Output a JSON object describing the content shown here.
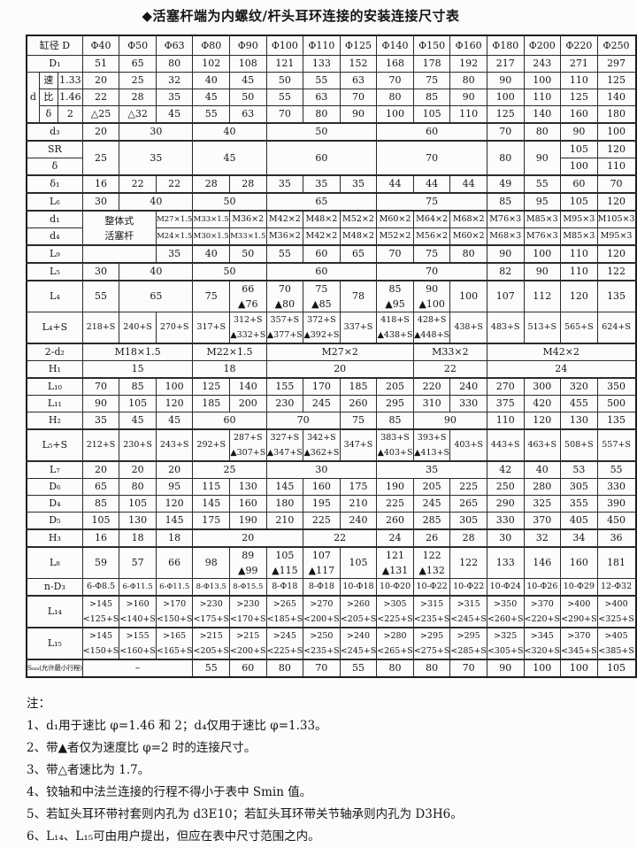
{
  "title": "◆活塞杆端为内螺纹/杆头耳环连接的安装连接尺寸表",
  "table": {
    "rows": [
      [
        {
          "t": "缸径 D",
          "c": 3
        },
        "Φ40",
        "Φ50",
        "Φ63",
        "Φ80",
        "Φ90",
        "Φ100",
        "Φ110",
        "Φ125",
        "Φ140",
        "Φ150",
        "Φ160",
        "Φ180",
        "Φ200",
        "Φ220",
        "Φ250"
      ],
      [
        {
          "t": "D₁",
          "c": 3
        },
        "51",
        "65",
        "80",
        "102",
        "108",
        "121",
        "133",
        "152",
        "168",
        "178",
        "192",
        "217",
        "243",
        "271",
        "297"
      ],
      [
        {
          "t": "d",
          "r": 3
        },
        {
          "t": "速"
        },
        {
          "t": "1.33"
        },
        "20",
        "25",
        "32",
        "40",
        "45",
        "50",
        "55",
        "63",
        "70",
        "75",
        "80",
        "90",
        "100",
        "110",
        "125"
      ],
      [
        {
          "t": "比"
        },
        {
          "t": "1.46"
        },
        "22",
        "28",
        "35",
        "45",
        "50",
        "55",
        "63",
        "70",
        "80",
        "85",
        "90",
        "100",
        "110",
        "125",
        "140"
      ],
      [
        {
          "t": "δ"
        },
        {
          "t": "2"
        },
        "△25",
        "△32",
        "45",
        "55",
        "63",
        "70",
        "80",
        "90",
        "100",
        "105",
        "110",
        "125",
        "140",
        "160",
        "180"
      ],
      [
        {
          "t": "d₃",
          "c": 3
        },
        "20",
        {
          "t": "30",
          "c": 2
        },
        {
          "t": "40",
          "c": 2
        },
        {
          "t": "50",
          "c": 3
        },
        {
          "t": "60",
          "c": 3
        },
        "70",
        "80",
        "90",
        "100"
      ],
      [
        {
          "t": "SR",
          "c": 3
        },
        {
          "t": "25",
          "r": 2
        },
        {
          "t": "35",
          "c": 2,
          "r": 2
        },
        {
          "t": "45",
          "c": 2,
          "r": 2
        },
        {
          "t": "60",
          "c": 3,
          "r": 2
        },
        {
          "t": "70",
          "c": 3,
          "r": 2
        },
        {
          "t": "80",
          "r": 2
        },
        {
          "t": "90",
          "r": 2
        },
        "105",
        "120"
      ],
      [
        {
          "t": "δ",
          "c": 3
        },
        "100",
        "110"
      ],
      [
        {
          "t": "δ₁",
          "c": 3
        },
        "16",
        "22",
        "22",
        "28",
        "28",
        "35",
        "35",
        "35",
        "44",
        "44",
        "44",
        "49",
        "55",
        "60",
        "70"
      ],
      [
        {
          "t": "L₆",
          "c": 3
        },
        "30",
        {
          "t": "40",
          "c": 2
        },
        {
          "t": "50",
          "c": 2
        },
        {
          "t": "65",
          "c": 3
        },
        {
          "t": "75",
          "c": 3
        },
        "85",
        "95",
        "105",
        "120"
      ],
      [
        {
          "t": "d₁",
          "c": 3
        },
        {
          "t2": [
            "整体式",
            "活塞杆"
          ],
          "c": 2,
          "r": 2
        },
        "M27×1.5",
        "M33×1.5",
        "M36×2",
        "M42×2",
        "M48×2",
        "M52×2",
        "M60×2",
        "M64×2",
        "M68×2",
        "M76×3",
        "M85×3",
        "M95×3",
        "M105×3"
      ],
      [
        {
          "t": "d₄",
          "c": 3
        },
        "M24×1.5",
        "M30×1.5",
        "M33×1.5",
        "M36×2",
        "M42×2",
        "M48×2",
        "M52×2",
        "M56×2",
        "M60×2",
        "M68×3",
        "M76×3",
        "M85×3",
        "M95×3"
      ],
      [
        {
          "t": "L₉",
          "c": 3
        },
        {
          "t": "",
          "c": 2
        },
        "35",
        "40",
        "50",
        "55",
        "60",
        "65",
        "70",
        "75",
        "80",
        "90",
        "100",
        "110",
        "120"
      ],
      [
        {
          "t": "L₅",
          "c": 3
        },
        "30",
        {
          "t": "40",
          "c": 2
        },
        {
          "t": "50",
          "c": 2
        },
        {
          "t": "60",
          "c": 3
        },
        {
          "t": "70",
          "c": 3
        },
        "82",
        "90",
        "110",
        "122"
      ],
      [
        {
          "t": "L₄",
          "c": 3
        },
        "55",
        {
          "t": "65",
          "c": 2
        },
        "75",
        {
          "t2": [
            "66",
            "▲76"
          ]
        },
        {
          "t2": [
            "70",
            "▲80"
          ]
        },
        {
          "t2": [
            "75",
            "▲85"
          ]
        },
        "78",
        {
          "t2": [
            "85",
            "▲95"
          ]
        },
        {
          "t2": [
            "90",
            "▲100"
          ]
        },
        "100",
        "107",
        "112",
        "120",
        "135"
      ],
      [
        {
          "t": "L₄+S",
          "c": 3
        },
        "218+S",
        "240+S",
        "270+S",
        "317+S",
        {
          "t2": [
            "312+S",
            "▲332+S"
          ]
        },
        {
          "t2": [
            "357+S",
            "▲377+S"
          ]
        },
        {
          "t2": [
            "372+S",
            "▲392+S"
          ]
        },
        "337+S",
        {
          "t2": [
            "418+S",
            "▲438+S"
          ]
        },
        {
          "t2": [
            "428+S",
            "▲448+S"
          ]
        },
        "438+S",
        "483+S",
        "513+S",
        "565+S",
        "624+S"
      ],
      [
        {
          "t": "2-d₂",
          "c": 3
        },
        {
          "t": "M18×1.5",
          "c": 3
        },
        {
          "t": "M22×1.5",
          "c": 2
        },
        {
          "t": "M27×2",
          "c": 4
        },
        {
          "t": "M33×2",
          "c": 2
        },
        {
          "t": "M42×2",
          "c": 4
        }
      ],
      [
        {
          "t": "H₁",
          "c": 3
        },
        {
          "t": "15",
          "c": 3
        },
        {
          "t": "18",
          "c": 2
        },
        {
          "t": "20",
          "c": 4
        },
        {
          "t": "22",
          "c": 2
        },
        {
          "t": "24",
          "c": 4
        }
      ],
      [
        {
          "t": "L₁₀",
          "c": 3
        },
        "70",
        "85",
        "100",
        "125",
        "140",
        "155",
        "170",
        "185",
        "205",
        "220",
        "240",
        "270",
        "300",
        "320",
        "350"
      ],
      [
        {
          "t": "L₁₁",
          "c": 3
        },
        "90",
        "105",
        "120",
        "185",
        "200",
        "230",
        "245",
        "260",
        "295",
        "310",
        "330",
        "375",
        "420",
        "455",
        "500"
      ],
      [
        {
          "t": "H₂",
          "c": 3
        },
        "35",
        "45",
        "45",
        {
          "t": "60",
          "c": 2
        },
        {
          "t": "70",
          "c": 2
        },
        "75",
        "85",
        {
          "t": "90",
          "c": 2
        },
        "110",
        "120",
        "130",
        "135"
      ],
      [
        {
          "t": "L₅+S",
          "c": 3
        },
        "212+S",
        "230+S",
        "243+S",
        "292+S",
        {
          "t2": [
            "287+S",
            "▲307+S"
          ]
        },
        {
          "t2": [
            "327+S",
            "▲347+S"
          ]
        },
        {
          "t2": [
            "342+S",
            "▲362+S"
          ]
        },
        "347+S",
        {
          "t2": [
            "383+S",
            "▲403+S"
          ]
        },
        {
          "t2": [
            "393+S",
            "▲413+S"
          ]
        },
        "403+S",
        "443+S",
        "463+S",
        "508+S",
        "557+S"
      ],
      [
        {
          "t": "L₇",
          "c": 3
        },
        "20",
        "20",
        "20",
        {
          "t": "25",
          "c": 2
        },
        {
          "t": "30",
          "c": 3
        },
        {
          "t": "35",
          "c": 3
        },
        "42",
        "40",
        "53",
        "55"
      ],
      [
        {
          "t": "D₆",
          "c": 3
        },
        "65",
        "80",
        "95",
        "115",
        "130",
        "145",
        "160",
        "175",
        "190",
        "205",
        "225",
        "250",
        "280",
        "305",
        "330"
      ],
      [
        {
          "t": "D₄",
          "c": 3
        },
        "85",
        "105",
        "120",
        "145",
        "160",
        "180",
        "195",
        "210",
        "225",
        "245",
        "265",
        "290",
        "325",
        "355",
        "390"
      ],
      [
        {
          "t": "D₅",
          "c": 3
        },
        "105",
        "130",
        "145",
        "175",
        "190",
        "210",
        "225",
        "240",
        "260",
        "285",
        "305",
        "330",
        "370",
        "405",
        "450"
      ],
      [
        {
          "t": "H₃",
          "c": 3
        },
        "16",
        "18",
        "18",
        {
          "t": "20",
          "c": 3
        },
        {
          "t": "22",
          "c": 2
        },
        "24",
        "26",
        "28",
        "30",
        "32",
        "34",
        "36"
      ],
      [
        {
          "t": "L₈",
          "c": 3
        },
        "59",
        "57",
        "66",
        "98",
        {
          "t2": [
            "89",
            "▲99"
          ]
        },
        {
          "t2": [
            "105",
            "▲115"
          ]
        },
        {
          "t2": [
            "107",
            "▲117"
          ]
        },
        "105",
        {
          "t2": [
            "121",
            "▲131"
          ]
        },
        {
          "t2": [
            "122",
            "▲132"
          ]
        },
        "122",
        "133",
        "146",
        "160",
        "181"
      ],
      [
        {
          "t": "n-D₃",
          "c": 3
        },
        "6-Φ8.5",
        "6-Φ11.5",
        "6-Φ11.5",
        "8-Φ13.5",
        "8-Φ15.5",
        "8-Φ18",
        "8-Φ18",
        "10-Φ18",
        "10-Φ20",
        "10-Φ22",
        "10-Φ22",
        "10-Φ24",
        "10-Φ26",
        "10-Φ29",
        "12-Φ32"
      ],
      [
        {
          "t": "L₁₄",
          "c": 3
        },
        {
          "t2": [
            ">145",
            "<125+S"
          ]
        },
        {
          "t2": [
            ">160",
            "<140+S"
          ]
        },
        {
          "t2": [
            ">170",
            "<150+S"
          ]
        },
        {
          "t2": [
            ">230",
            "<175+S"
          ]
        },
        {
          "t2": [
            ">230",
            "<170+S"
          ]
        },
        {
          "t2": [
            ">265",
            "<185+S"
          ]
        },
        {
          "t2": [
            ">270",
            "<200+S"
          ]
        },
        {
          "t2": [
            ">260",
            "<205+S"
          ]
        },
        {
          "t2": [
            ">305",
            "<225+S"
          ]
        },
        {
          "t2": [
            ">315",
            "<235+S"
          ]
        },
        {
          "t2": [
            ">315",
            "<245+S"
          ]
        },
        {
          "t2": [
            ">350",
            "<260+S"
          ]
        },
        {
          "t2": [
            ">370",
            "<220+S"
          ]
        },
        {
          "t2": [
            ">400",
            "<290+S"
          ]
        },
        {
          "t2": [
            ">400",
            "<325+S"
          ]
        }
      ],
      [
        {
          "t": "L₁₅",
          "c": 3
        },
        {
          "t2": [
            ">145",
            "<150+S"
          ]
        },
        {
          "t2": [
            ">155",
            "<160+S"
          ]
        },
        {
          "t2": [
            ">165",
            "<165+S"
          ]
        },
        {
          "t2": [
            ">215",
            "<205+S"
          ]
        },
        {
          "t2": [
            ">215",
            "<200+S"
          ]
        },
        {
          "t2": [
            ">245",
            "<225+S"
          ]
        },
        {
          "t2": [
            ">250",
            "<235+S"
          ]
        },
        {
          "t2": [
            ">240",
            "<245+S"
          ]
        },
        {
          "t2": [
            ">280",
            "<265+S"
          ]
        },
        {
          "t2": [
            ">295",
            "<275+S"
          ]
        },
        {
          "t2": [
            ">295",
            "<285+S"
          ]
        },
        {
          "t2": [
            ">325",
            "<305+S"
          ]
        },
        {
          "t2": [
            ">345",
            "<320+S"
          ]
        },
        {
          "t2": [
            ">370",
            "<345+S"
          ]
        },
        {
          "t2": [
            ">405",
            "<385+S"
          ]
        }
      ],
      [
        {
          "t": "Sₘᵢₙ(允许最小行程)",
          "c": 3
        },
        {
          "t": "–",
          "c": 3
        },
        "55",
        "60",
        "80",
        "70",
        "55",
        "80",
        "80",
        "70",
        "90",
        "100",
        "100",
        "105"
      ]
    ]
  },
  "notes": {
    "heading": "注：",
    "items": [
      "1、d₁用于速比 φ=1.46 和 2；d₄仅用于速比 φ=1.33。",
      "2、带▲者仅为速度比 φ=2 时的连接尺寸。",
      "3、带△者速比为 1.7。",
      "4、铰轴和中法兰连接的行程不得小于表中 Smin 值。",
      "5、若缸头耳环带衬套则内孔为 d3E10；若缸头耳环带关节轴承则内孔为 D3H6。",
      "6、L₁₄、L₁₅可由用户提出，但应在表中尺寸范围之内。"
    ]
  }
}
